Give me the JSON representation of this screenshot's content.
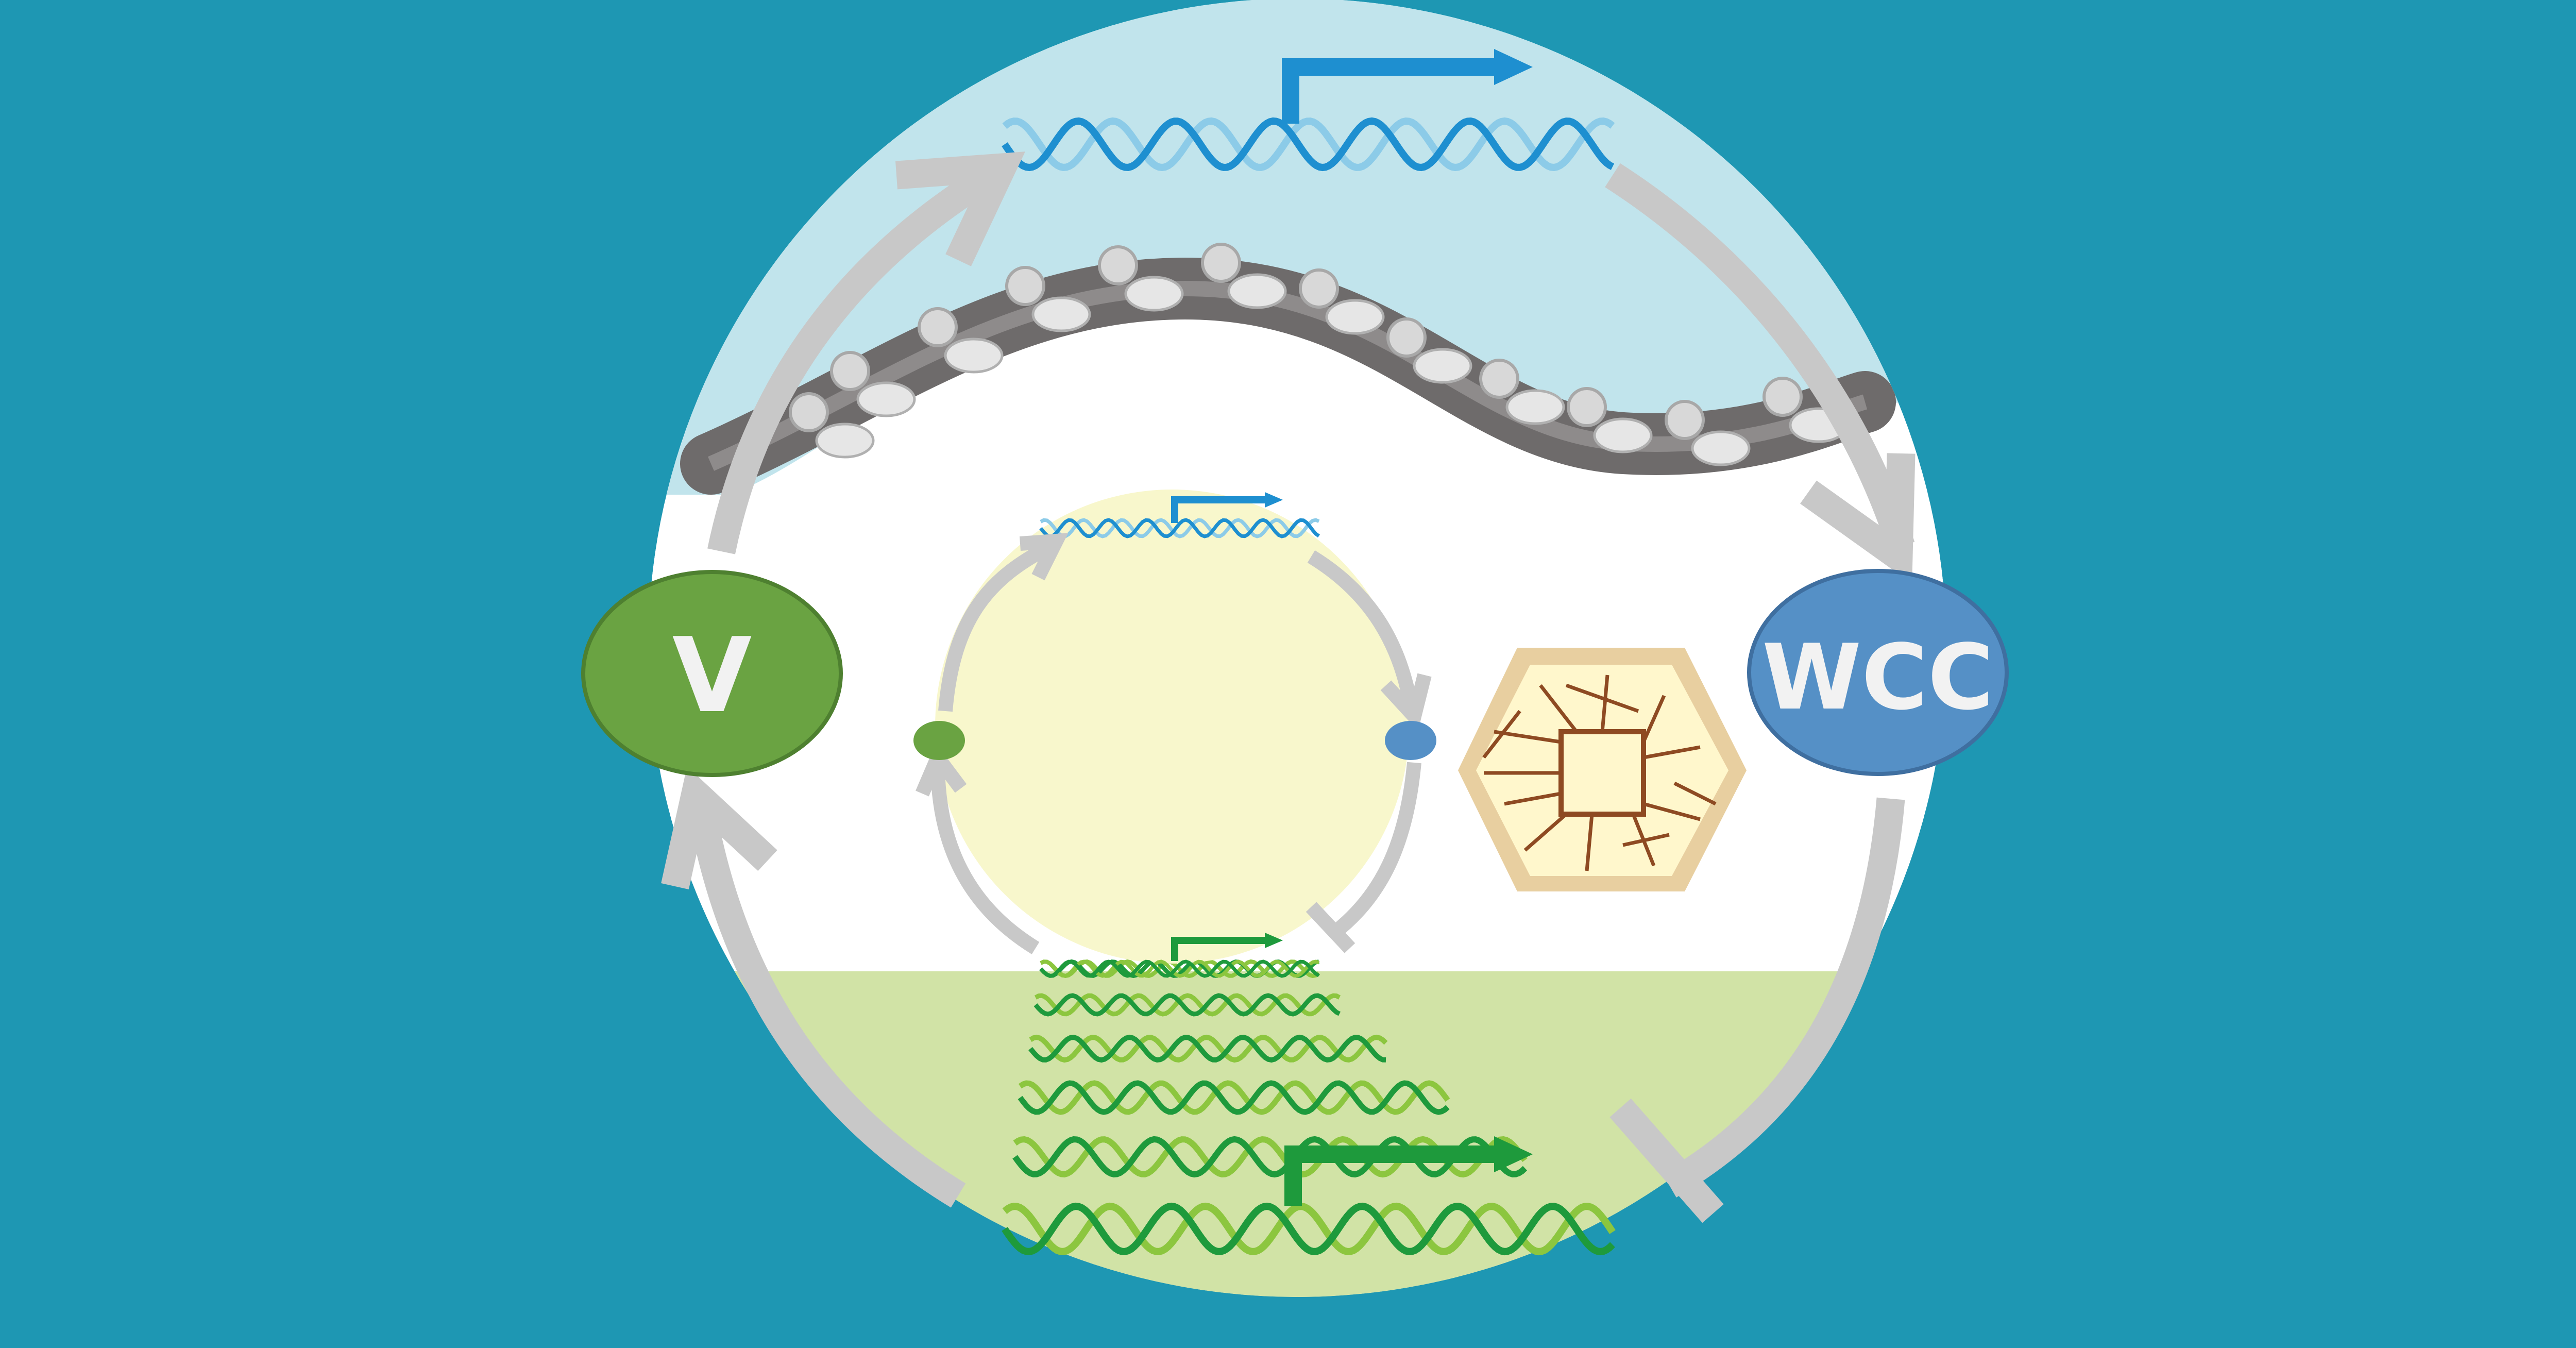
{
  "diagram": {
    "nodes": {
      "v": {
        "label": "V",
        "color": "#6AA342",
        "text_color": "#F2F2F2"
      },
      "wcc": {
        "label": "WCC",
        "color": "#5590C6",
        "text_color": "#F2F2F2"
      }
    },
    "colors": {
      "background": "#1E97B3",
      "circle_fill": "#FFFFFF",
      "top_region": "#C1E4EC",
      "bottom_region": "#D1E3A6",
      "inner_circle": "#F8F7CC",
      "arrow_gray": "#C8C8C8",
      "membrane_dark": "#6E6B6B",
      "membrane_mid": "#8E8B8B",
      "dna_blue": "#1E8FD0",
      "dna_light_blue": "#8CCBE8",
      "dna_green": "#1E9A3C",
      "dna_light_green": "#8CC63F",
      "hexagon_fill": "#E8CFA0",
      "hexagon_inner": "#FFF7CC",
      "hexagon_lines": "#8E4A22"
    },
    "icons": [
      "dna-helix-icon",
      "promoter-arrow-icon",
      "membrane-protein-icon",
      "cell-wall-hexagon-icon",
      "activation-arrow-icon",
      "inhibition-bar-icon"
    ]
  }
}
